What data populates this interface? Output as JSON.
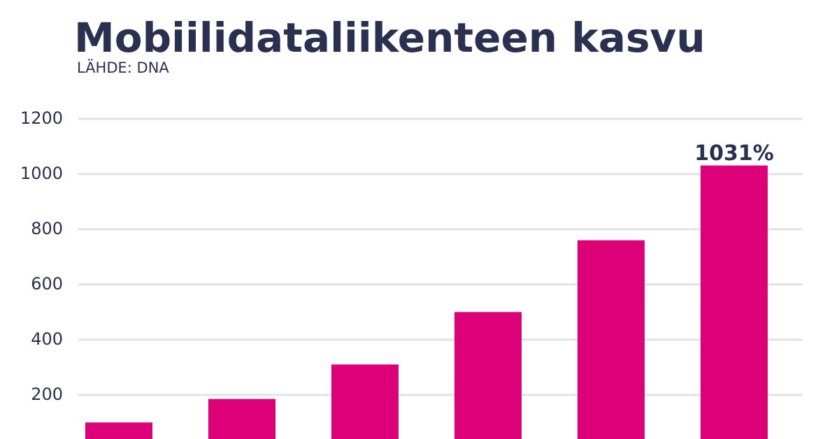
{
  "chart_data": {
    "type": "bar",
    "title": "Mobiilidataliikenteen kasvu",
    "subtitle": "LÄHDE: DNA",
    "categories": [
      null,
      null,
      null,
      null,
      null,
      null
    ],
    "values": [
      100,
      185,
      310,
      500,
      760,
      1031
    ],
    "value_labels": [
      null,
      null,
      null,
      null,
      null,
      "1031%"
    ],
    "color": "#de0079",
    "ylim": [
      40,
      1200
    ],
    "yticks": [
      200,
      400,
      600,
      800,
      1000,
      1200
    ],
    "grid": true
  }
}
